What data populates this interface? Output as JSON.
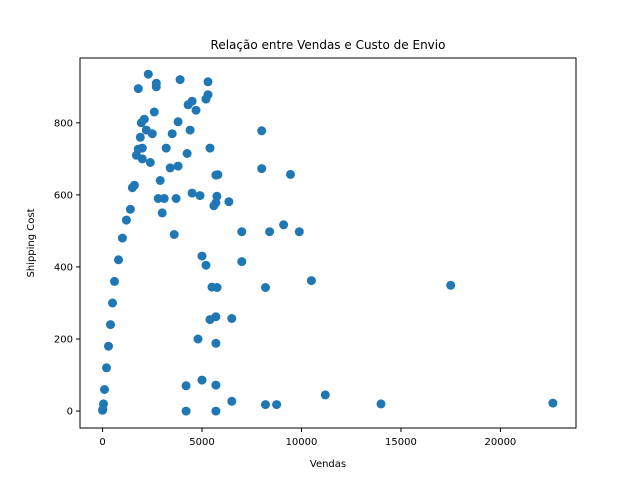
{
  "chart_data": {
    "type": "scatter",
    "title": "Relação entre Vendas e Custo de Envio",
    "xlabel": "Vendas",
    "ylabel": "Shipping Cost",
    "xlim": [
      -1133,
      23800
    ],
    "ylim": [
      -47,
      980
    ],
    "xticks": [
      0,
      5000,
      10000,
      15000,
      20000
    ],
    "yticks": [
      0,
      200,
      400,
      600,
      800
    ],
    "grid": false,
    "legend": "none",
    "marker_color": "#1f77b4",
    "series": [
      {
        "points": [
          [
            22638,
            22
          ],
          [
            17500,
            349
          ],
          [
            13999,
            20
          ],
          [
            11199,
            45
          ],
          [
            10499,
            362
          ],
          [
            9893,
            498
          ],
          [
            9450,
            657
          ],
          [
            9100,
            517
          ],
          [
            8750,
            18
          ],
          [
            8400,
            498
          ],
          [
            8190,
            343
          ],
          [
            8190,
            18
          ],
          [
            8000,
            778
          ],
          [
            8000,
            673
          ],
          [
            6999,
            498
          ],
          [
            6999,
            415
          ],
          [
            6500,
            257
          ],
          [
            6500,
            27
          ],
          [
            6350,
            581
          ],
          [
            5800,
            656
          ],
          [
            5700,
            655
          ],
          [
            5750,
            596
          ],
          [
            5760,
            343
          ],
          [
            5700,
            578
          ],
          [
            5700,
            262
          ],
          [
            5700,
            188
          ],
          [
            5700,
            72
          ],
          [
            5700,
            0
          ],
          [
            5600,
            570
          ],
          [
            5500,
            344
          ],
          [
            5400,
            254
          ],
          [
            5400,
            730
          ],
          [
            5300,
            878
          ],
          [
            5300,
            914
          ],
          [
            5200,
            866
          ],
          [
            5200,
            405
          ],
          [
            5000,
            430
          ],
          [
            5000,
            86
          ],
          [
            4900,
            598
          ],
          [
            4800,
            200
          ],
          [
            4700,
            835
          ],
          [
            4500,
            860
          ],
          [
            4500,
            605
          ],
          [
            4400,
            780
          ],
          [
            4300,
            850
          ],
          [
            4250,
            715
          ],
          [
            4200,
            70
          ],
          [
            4200,
            0
          ],
          [
            3900,
            920
          ],
          [
            3800,
            803
          ],
          [
            3800,
            680
          ],
          [
            3700,
            590
          ],
          [
            3600,
            490
          ],
          [
            3500,
            770
          ],
          [
            3400,
            675
          ],
          [
            3200,
            730
          ],
          [
            3100,
            590
          ],
          [
            3000,
            550
          ],
          [
            2900,
            640
          ],
          [
            2800,
            590
          ],
          [
            2700,
            900
          ],
          [
            2700,
            910
          ],
          [
            2600,
            830
          ],
          [
            2500,
            770
          ],
          [
            2400,
            690
          ],
          [
            2300,
            935
          ],
          [
            2200,
            780
          ],
          [
            2100,
            810
          ],
          [
            2000,
            700
          ],
          [
            2000,
            730
          ],
          [
            1950,
            800
          ],
          [
            1900,
            760
          ],
          [
            1800,
            895
          ],
          [
            1800,
            727
          ],
          [
            1700,
            710
          ],
          [
            1600,
            627
          ],
          [
            1500,
            620
          ],
          [
            1400,
            560
          ],
          [
            1200,
            530
          ],
          [
            1000,
            480
          ],
          [
            800,
            420
          ],
          [
            600,
            360
          ],
          [
            500,
            300
          ],
          [
            400,
            240
          ],
          [
            300,
            180
          ],
          [
            200,
            120
          ],
          [
            100,
            60
          ],
          [
            50,
            20
          ],
          [
            20,
            5
          ],
          [
            0,
            2
          ]
        ]
      }
    ]
  }
}
